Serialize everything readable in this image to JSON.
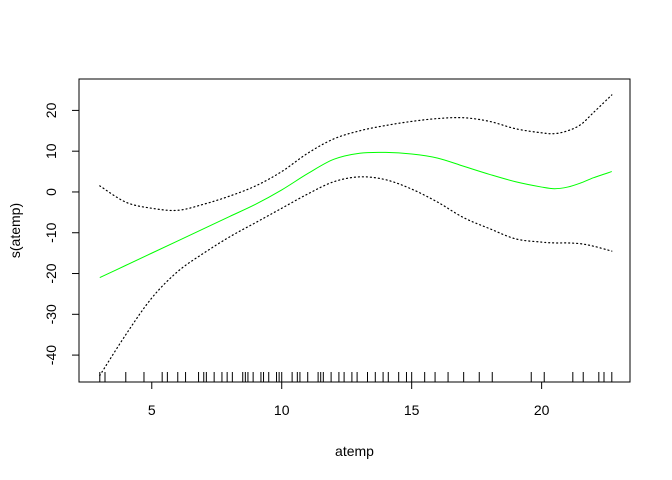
{
  "chart_data": {
    "type": "line",
    "title": "",
    "xlabel": "atemp",
    "ylabel": "s(atemp)",
    "xlim": [
      2.2,
      23.4
    ],
    "ylim": [
      -46.6,
      27.7
    ],
    "x_ticks": [
      5,
      10,
      15,
      20
    ],
    "y_ticks": [
      -40,
      -30,
      -20,
      -10,
      0,
      10,
      20
    ],
    "grid": false,
    "legend": "none",
    "series": [
      {
        "role": "fit",
        "color": "#00ff00",
        "style": "solid",
        "x": [
          3.0,
          4.0,
          5.0,
          6.0,
          7.0,
          8.0,
          9.0,
          10.0,
          11.0,
          12.0,
          13.0,
          14.0,
          15.0,
          16.0,
          17.0,
          18.0,
          19.0,
          20.0,
          20.5,
          21.0,
          21.5,
          22.0,
          22.7
        ],
        "y": [
          -21.0,
          -18.0,
          -15.0,
          -12.0,
          -9.0,
          -6.0,
          -3.0,
          0.5,
          4.5,
          8.0,
          9.5,
          9.7,
          9.3,
          8.3,
          6.3,
          4.3,
          2.5,
          1.2,
          0.8,
          1.2,
          2.2,
          3.5,
          5.0
        ]
      },
      {
        "role": "upper-band",
        "color": "#000000",
        "style": "dotted",
        "x": [
          3.0,
          4.0,
          5.0,
          6.0,
          7.0,
          8.0,
          9.0,
          10.0,
          11.0,
          12.0,
          13.0,
          14.0,
          15.0,
          16.0,
          17.0,
          18.0,
          19.0,
          20.0,
          20.5,
          21.0,
          21.5,
          22.0,
          22.7
        ],
        "y": [
          1.5,
          -2.5,
          -4.0,
          -4.5,
          -3.0,
          -1.0,
          1.5,
          5.0,
          9.5,
          13.0,
          15.0,
          16.3,
          17.3,
          18.0,
          18.2,
          17.3,
          15.5,
          14.5,
          14.3,
          15.0,
          16.5,
          19.5,
          23.8
        ]
      },
      {
        "role": "lower-band",
        "color": "#000000",
        "style": "dotted",
        "x": [
          3.0,
          4.0,
          5.0,
          6.0,
          7.0,
          8.0,
          9.0,
          10.0,
          11.0,
          12.0,
          13.0,
          14.0,
          15.0,
          16.0,
          17.0,
          18.0,
          19.0,
          20.0,
          20.5,
          21.0,
          21.5,
          22.0,
          22.7
        ],
        "y": [
          -45.0,
          -35.0,
          -26.0,
          -19.5,
          -15.0,
          -11.0,
          -7.5,
          -4.0,
          -0.5,
          2.5,
          3.7,
          3.0,
          0.7,
          -2.5,
          -6.3,
          -9.0,
          -11.5,
          -12.3,
          -12.5,
          -12.5,
          -12.7,
          -13.3,
          -14.5
        ]
      }
    ],
    "rug": [
      3.0,
      3.2,
      4.0,
      4.7,
      5.4,
      5.6,
      6.0,
      6.3,
      6.8,
      7.0,
      7.1,
      7.4,
      7.7,
      7.9,
      8.1,
      8.5,
      8.6,
      8.7,
      8.9,
      9.2,
      9.3,
      9.5,
      9.8,
      9.9,
      10.0,
      10.4,
      10.6,
      10.7,
      11.0,
      11.4,
      11.5,
      11.6,
      11.9,
      12.2,
      12.4,
      12.7,
      12.9,
      13.3,
      13.6,
      13.9,
      14.1,
      14.5,
      14.8,
      15.0,
      15.5,
      15.9,
      16.4,
      17.0,
      17.6,
      18.1,
      19.6,
      20.1,
      21.2,
      21.6,
      22.2,
      22.4,
      22.7
    ]
  }
}
